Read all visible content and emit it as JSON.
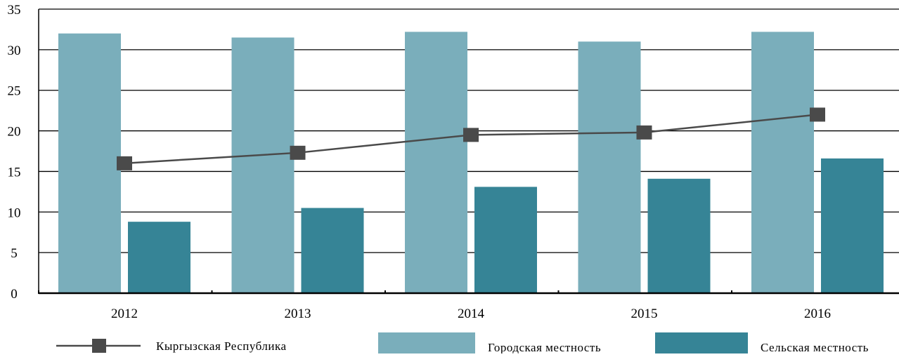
{
  "chart_data": {
    "type": "bar",
    "title": "",
    "xlabel": "",
    "ylabel": "",
    "categories": [
      "2012",
      "2013",
      "2014",
      "2015",
      "2016"
    ],
    "ylim": [
      0,
      35
    ],
    "yticks": [
      "0",
      "5",
      "10",
      "15",
      "20",
      "25",
      "30",
      "35"
    ],
    "grid": true,
    "legend_position": "bottom",
    "series": [
      {
        "name": "Городская местность",
        "kind": "bar",
        "color": "#7aaebb",
        "values": [
          32.0,
          31.5,
          32.2,
          31.0,
          32.2
        ]
      },
      {
        "name": "Сельская местность",
        "kind": "bar",
        "color": "#368496",
        "values": [
          8.8,
          10.5,
          13.1,
          14.1,
          16.6
        ]
      },
      {
        "name": "Кыргызская Республика",
        "kind": "line",
        "color": "#4a4a4a",
        "values": [
          16.0,
          17.3,
          19.5,
          19.8,
          22.0
        ]
      }
    ]
  }
}
